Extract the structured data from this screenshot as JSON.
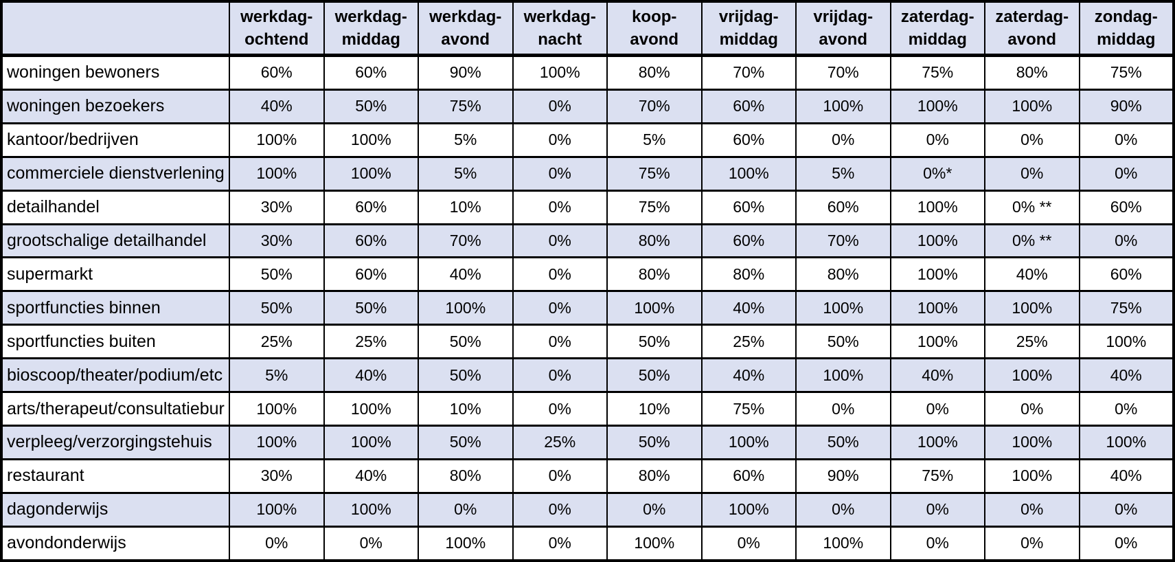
{
  "chart_data": {
    "type": "table",
    "title": "",
    "columns": [
      {
        "top": "werkdag-",
        "bottom": "ochtend"
      },
      {
        "top": "werkdag-",
        "bottom": "middag"
      },
      {
        "top": "werkdag-",
        "bottom": "avond"
      },
      {
        "top": "werkdag-",
        "bottom": "nacht"
      },
      {
        "top": "koop-",
        "bottom": "avond"
      },
      {
        "top": "vrijdag-",
        "bottom": "middag"
      },
      {
        "top": "vrijdag-",
        "bottom": "avond"
      },
      {
        "top": "zaterdag-",
        "bottom": "middag"
      },
      {
        "top": "zaterdag-",
        "bottom": "avond"
      },
      {
        "top": "zondag-",
        "bottom": "middag"
      }
    ],
    "rows": [
      {
        "label": "woningen bewoners",
        "values": [
          "60%",
          "60%",
          "90%",
          "100%",
          "80%",
          "70%",
          "70%",
          "75%",
          "80%",
          "75%"
        ]
      },
      {
        "label": "woningen bezoekers",
        "values": [
          "40%",
          "50%",
          "75%",
          "0%",
          "70%",
          "60%",
          "100%",
          "100%",
          "100%",
          "90%"
        ]
      },
      {
        "label": "kantoor/bedrijven",
        "values": [
          "100%",
          "100%",
          "5%",
          "0%",
          "5%",
          "60%",
          "0%",
          "0%",
          "0%",
          "0%"
        ]
      },
      {
        "label": "commerciele dienstverlening",
        "values": [
          "100%",
          "100%",
          "5%",
          "0%",
          "75%",
          "100%",
          "5%",
          "0%*",
          "0%",
          "0%"
        ]
      },
      {
        "label": "detailhandel",
        "values": [
          "30%",
          "60%",
          "10%",
          "0%",
          "75%",
          "60%",
          "60%",
          "100%",
          "0% **",
          "60%"
        ]
      },
      {
        "label": "grootschalige detailhandel",
        "values": [
          "30%",
          "60%",
          "70%",
          "0%",
          "80%",
          "60%",
          "70%",
          "100%",
          "0% **",
          "0%"
        ]
      },
      {
        "label": "supermarkt",
        "values": [
          "50%",
          "60%",
          "40%",
          "0%",
          "80%",
          "80%",
          "80%",
          "100%",
          "40%",
          "60%"
        ]
      },
      {
        "label": "sportfuncties binnen",
        "values": [
          "50%",
          "50%",
          "100%",
          "0%",
          "100%",
          "40%",
          "100%",
          "100%",
          "100%",
          "75%"
        ]
      },
      {
        "label": "sportfuncties buiten",
        "values": [
          "25%",
          "25%",
          "50%",
          "0%",
          "50%",
          "25%",
          "50%",
          "100%",
          "25%",
          "100%"
        ]
      },
      {
        "label": "bioscoop/theater/podium/etc",
        "values": [
          "5%",
          "40%",
          "50%",
          "0%",
          "50%",
          "40%",
          "100%",
          "40%",
          "100%",
          "40%"
        ]
      },
      {
        "label": "arts/therapeut/consultatiebur",
        "values": [
          "100%",
          "100%",
          "10%",
          "0%",
          "10%",
          "75%",
          "0%",
          "0%",
          "0%",
          "0%"
        ]
      },
      {
        "label": "verpleeg/verzorgingstehuis",
        "values": [
          "100%",
          "100%",
          "50%",
          "25%",
          "50%",
          "100%",
          "50%",
          "100%",
          "100%",
          "100%"
        ]
      },
      {
        "label": "restaurant",
        "values": [
          "30%",
          "40%",
          "80%",
          "0%",
          "80%",
          "60%",
          "90%",
          "75%",
          "100%",
          "40%"
        ]
      },
      {
        "label": "dagonderwijs",
        "values": [
          "100%",
          "100%",
          "0%",
          "0%",
          "0%",
          "100%",
          "0%",
          "0%",
          "0%",
          "0%"
        ]
      },
      {
        "label": "avondonderwijs",
        "values": [
          "0%",
          "0%",
          "100%",
          "0%",
          "100%",
          "0%",
          "100%",
          "0%",
          "0%",
          "0%"
        ]
      }
    ],
    "layout": {
      "alternating_row_shading": true,
      "grid": true,
      "first_data_row_is_white": true
    }
  },
  "colors": {
    "header_bg": "#dbe0f1",
    "alt_row_bg": "#dbe0f1",
    "row_bg": "#ffffff",
    "border": "#000000",
    "text": "#000000"
  }
}
